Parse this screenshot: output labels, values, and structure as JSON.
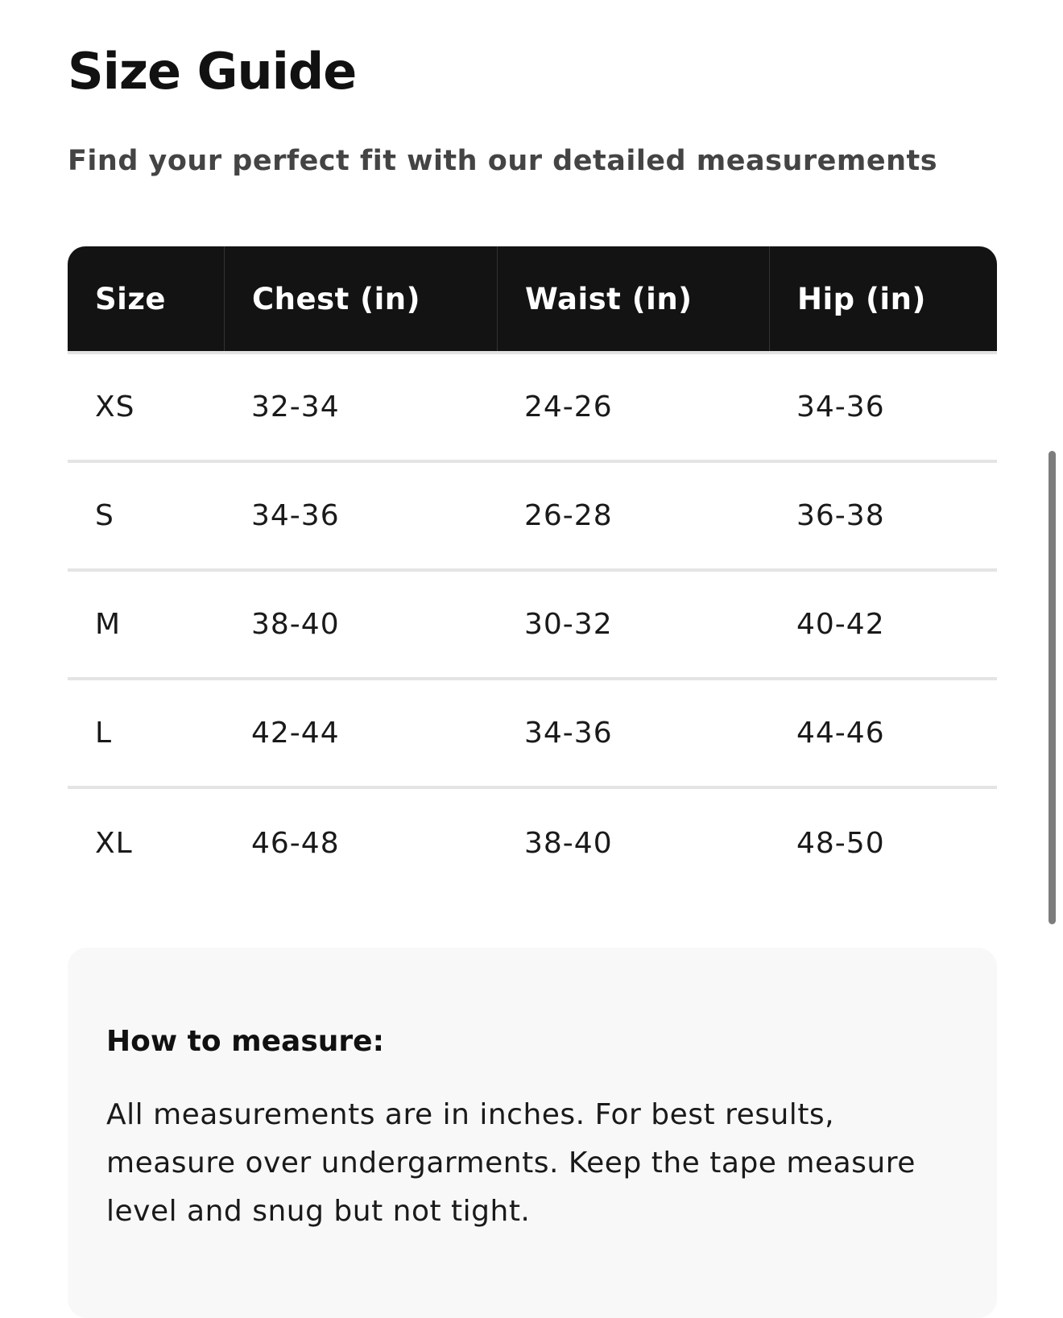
{
  "header": {
    "title": "Size Guide",
    "subtitle": "Find your perfect fit with our detailed measurements"
  },
  "table": {
    "columns": [
      "Size",
      "Chest (in)",
      "Waist (in)",
      "Hip (in)"
    ],
    "rows": [
      [
        "XS",
        "32-34",
        "24-26",
        "34-36"
      ],
      [
        "S",
        "34-36",
        "26-28",
        "36-38"
      ],
      [
        "M",
        "38-40",
        "30-32",
        "40-42"
      ],
      [
        "L",
        "42-44",
        "34-36",
        "44-46"
      ],
      [
        "XL",
        "46-48",
        "38-40",
        "48-50"
      ]
    ]
  },
  "how_to_measure": {
    "heading": "How to measure:",
    "text": "All measurements are in inches. For best results, measure over undergarments. Keep the tape measure level and snug but not tight."
  },
  "colors": {
    "header_bg": "#131313",
    "info_bg": "#f8f8f8"
  }
}
